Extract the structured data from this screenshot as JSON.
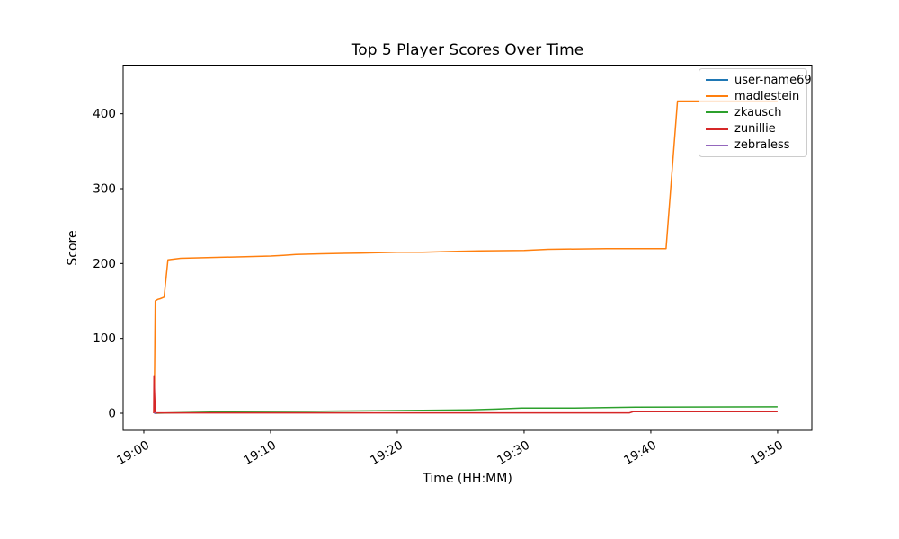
{
  "figure": {
    "title": "Top 5 Player Scores Over Time",
    "xlabel": "Time (HH:MM)",
    "ylabel": "Score"
  },
  "chart_data": {
    "type": "line",
    "title": "Top 5 Player Scores Over Time",
    "xlabel": "Time (HH:MM)",
    "ylabel": "Score",
    "x_unit_note": "x values are minutes after 19:00",
    "x_tick_minutes": [
      0,
      10,
      20,
      30,
      40,
      50
    ],
    "x_tick_labels": [
      "19:00",
      "19:10",
      "19:20",
      "19:30",
      "19:40",
      "19:50"
    ],
    "y_ticks": [
      0,
      100,
      200,
      300,
      400
    ],
    "x_range": [
      -1.63,
      52.7
    ],
    "y_range": [
      -22.8,
      465
    ],
    "grid": false,
    "legend_position": "upper right",
    "series": [
      {
        "name": "user-name69",
        "color": "#1f77b4",
        "points": [
          [
            0.82,
            0
          ],
          [
            1.0,
            0
          ]
        ]
      },
      {
        "name": "madlestein",
        "color": "#ff7f0e",
        "points": [
          [
            0.82,
            0
          ],
          [
            0.9,
            150
          ],
          [
            1.1,
            152
          ],
          [
            1.3,
            153
          ],
          [
            1.6,
            155
          ],
          [
            1.9,
            205
          ],
          [
            2.9,
            207
          ],
          [
            5,
            208
          ],
          [
            8,
            209
          ],
          [
            10,
            210
          ],
          [
            11,
            211
          ],
          [
            12,
            212
          ],
          [
            14,
            213
          ],
          [
            17,
            214
          ],
          [
            20,
            215
          ],
          [
            22,
            215
          ],
          [
            24,
            216
          ],
          [
            26.5,
            217
          ],
          [
            30,
            217.5
          ],
          [
            31.9,
            219
          ],
          [
            36.5,
            220
          ],
          [
            41.2,
            220
          ],
          [
            42.1,
            417
          ],
          [
            50,
            417
          ]
        ]
      },
      {
        "name": "zkausch",
        "color": "#2ca02c",
        "points": [
          [
            0.82,
            0
          ],
          [
            3.3,
            1
          ],
          [
            7,
            2
          ],
          [
            13,
            2.5
          ],
          [
            16,
            3
          ],
          [
            19.3,
            3.5
          ],
          [
            25.7,
            4.5
          ],
          [
            27.8,
            5.5
          ],
          [
            29.8,
            7
          ],
          [
            34,
            7
          ],
          [
            38.8,
            8
          ],
          [
            50,
            8.5
          ]
        ]
      },
      {
        "name": "zunillie",
        "color": "#d62728",
        "points": [
          [
            0.78,
            0
          ],
          [
            0.8,
            50
          ],
          [
            0.9,
            0.5
          ],
          [
            38.3,
            0.5
          ],
          [
            38.6,
            2
          ],
          [
            50,
            2
          ]
        ]
      },
      {
        "name": "zebraless",
        "color": "#9467bd",
        "points": [
          [
            0.82,
            0
          ],
          [
            1.0,
            0
          ]
        ]
      }
    ]
  },
  "style": {
    "axis_color": "#000000",
    "legend_border": "#cccccc",
    "background": "#ffffff"
  }
}
